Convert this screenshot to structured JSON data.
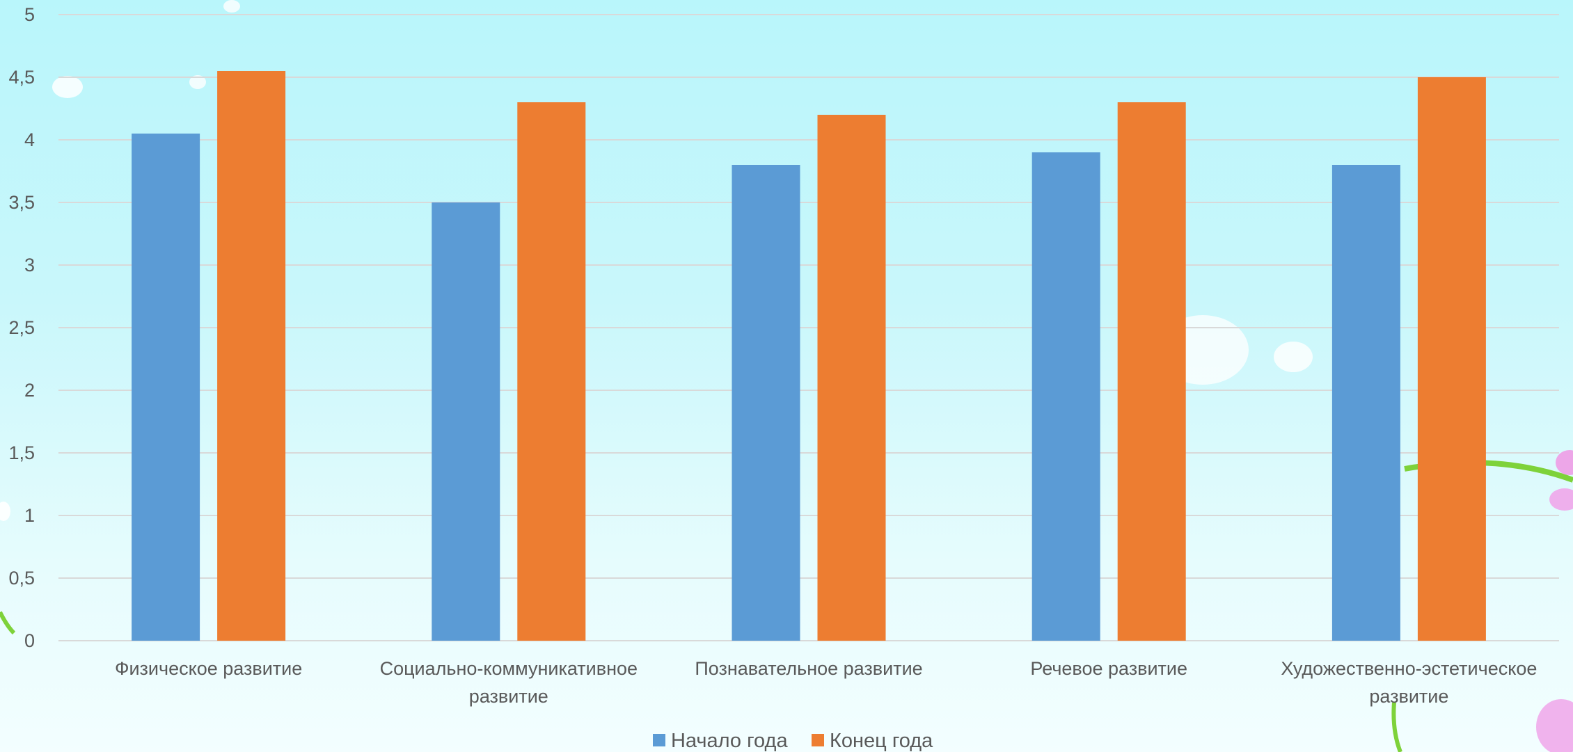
{
  "chart_data": {
    "type": "bar",
    "categories": [
      "Физическое развитие",
      "Социально-коммуникативное развитие",
      "Познавательное развитие",
      "Речевое развитие",
      "Художественно-эстетическое развитие"
    ],
    "category_lines": [
      [
        "Физическое развитие"
      ],
      [
        "Социально-коммуникативное",
        "развитие"
      ],
      [
        "Познавательное развитие"
      ],
      [
        "Речевое развитие"
      ],
      [
        "Художественно-эстетическое",
        "развитие"
      ]
    ],
    "series": [
      {
        "name": "Начало года",
        "color": "#5b9bd5",
        "values": [
          4.05,
          3.5,
          3.8,
          3.9,
          3.8
        ]
      },
      {
        "name": "Конец года",
        "color": "#ed7d31",
        "values": [
          4.55,
          4.3,
          4.2,
          4.3,
          4.5
        ]
      }
    ],
    "y_ticks": [
      "0",
      "0,5",
      "1",
      "1,5",
      "2",
      "2,5",
      "3",
      "3,5",
      "4",
      "4,5",
      "5"
    ],
    "ylim": [
      0,
      5
    ],
    "grid": true,
    "legend_position": "bottom",
    "title": "",
    "xlabel": "",
    "ylabel": ""
  }
}
